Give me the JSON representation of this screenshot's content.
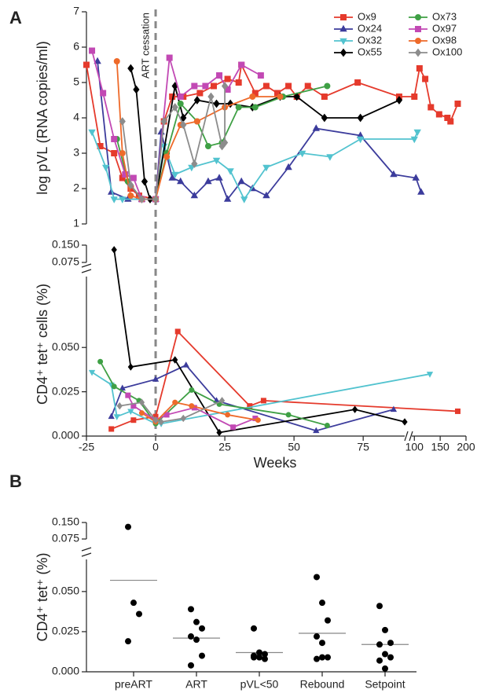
{
  "chart_data": [
    {
      "type": "line",
      "panel": "A",
      "ylabel": "log pVL (RNA copies/ml)",
      "annotation": "ART cessation",
      "vline": 0,
      "ylim": [
        1,
        7
      ],
      "yticks": [
        1,
        2,
        3,
        4,
        5,
        6,
        7
      ],
      "series": [
        {
          "name": "Ox9",
          "color": "#e53a2c",
          "marker": "square",
          "x": [
            -25,
            -20,
            -15,
            -12,
            -9,
            -6,
            0,
            3,
            6,
            10,
            16,
            21,
            26,
            30,
            31,
            36,
            40,
            44,
            48,
            51,
            55,
            61,
            73,
            88,
            100,
            110,
            121,
            132,
            148,
            164,
            170,
            184
          ],
          "values": [
            5.5,
            3.2,
            3.0,
            2.3,
            2.0,
            1.8,
            1.7,
            3.9,
            4.6,
            4.6,
            4.7,
            4.9,
            5.1,
            5.0,
            5.5,
            4.7,
            4.9,
            4.7,
            4.9,
            4.6,
            4.9,
            4.6,
            5.0,
            4.6,
            4.6,
            5.4,
            5.1,
            4.3,
            4.1,
            4.0,
            3.9,
            4.4
          ]
        },
        {
          "name": "Ox24",
          "color": "#3c3c9c",
          "marker": "triangle",
          "x": [
            -21,
            -16,
            -10,
            -5,
            0,
            2,
            6,
            9,
            14,
            19,
            23,
            26,
            31,
            35,
            40,
            48,
            58,
            74,
            86,
            103,
            113
          ],
          "values": [
            5.6,
            1.9,
            1.7,
            1.7,
            1.7,
            3.6,
            2.3,
            2.2,
            1.8,
            2.2,
            2.3,
            1.7,
            2.2,
            2.0,
            1.8,
            2.6,
            3.7,
            3.5,
            2.4,
            2.3,
            1.9
          ]
        },
        {
          "name": "Ox32",
          "color": "#52c3cf",
          "marker": "triangle-down",
          "x": [
            -23,
            -18,
            -15,
            -12,
            -5,
            0,
            3,
            7,
            13,
            22,
            27,
            32,
            40,
            53,
            63,
            74,
            100,
            106
          ],
          "values": [
            3.6,
            2.6,
            1.7,
            1.7,
            1.7,
            1.7,
            3.2,
            2.4,
            2.6,
            2.8,
            2.5,
            1.7,
            2.6,
            3.0,
            2.9,
            3.4,
            3.4,
            3.6
          ]
        },
        {
          "name": "Ox55",
          "color": "#000000",
          "marker": "diamond",
          "x": [
            -9,
            -7,
            -4,
            -2,
            0,
            7,
            10,
            15,
            22,
            27,
            35,
            45,
            51,
            61,
            74,
            88
          ],
          "values": [
            5.4,
            4.8,
            2.2,
            1.7,
            1.7,
            4.9,
            4.0,
            4.5,
            4.4,
            4.4,
            4.3,
            4.6,
            4.6,
            4.0,
            4.0,
            4.5
          ]
        },
        {
          "name": "Ox73",
          "color": "#3fa045",
          "marker": "circle",
          "x": [
            -14,
            -10,
            -5,
            0,
            4,
            9,
            15,
            19,
            24,
            30,
            36,
            46,
            62
          ],
          "values": [
            3.4,
            2.2,
            1.7,
            1.7,
            3.0,
            4.4,
            3.9,
            3.2,
            3.3,
            4.3,
            4.3,
            4.6,
            4.9
          ]
        },
        {
          "name": "Ox97",
          "color": "#c249b4",
          "marker": "square",
          "x": [
            -23,
            -19,
            -15,
            -11,
            -8,
            -5,
            0,
            5,
            9,
            14,
            18,
            23,
            26,
            31,
            38
          ],
          "values": [
            5.9,
            4.7,
            3.4,
            2.4,
            2.3,
            1.7,
            1.7,
            5.7,
            4.6,
            4.9,
            4.9,
            5.2,
            4.8,
            5.5,
            5.2
          ]
        },
        {
          "name": "Ox98",
          "color": "#ee6a2a",
          "marker": "circle",
          "x": [
            -14,
            -12,
            -9,
            -5,
            0,
            4,
            9,
            15,
            25,
            35,
            45
          ],
          "values": [
            5.6,
            3.0,
            1.8,
            1.7,
            1.7,
            2.9,
            3.8,
            3.9,
            4.3,
            4.6,
            4.6
          ]
        },
        {
          "name": "Ox100",
          "color": "#8c8c8c",
          "marker": "diamond",
          "x": [
            -12,
            -9,
            -5,
            0,
            3,
            7,
            10,
            14,
            20,
            24,
            25,
            25
          ],
          "values": [
            3.9,
            2.1,
            1.7,
            1.7,
            3.9,
            4.3,
            3.8,
            2.7,
            4.6,
            3.2,
            3.3,
            4.9
          ]
        }
      ]
    },
    {
      "type": "line",
      "ylabel": "CD4⁺ tet⁺ cells (%)",
      "xlabel": "Weeks",
      "xlim": [
        [
          -25,
          90
        ],
        [
          95,
          200
        ]
      ],
      "xticks": [
        -25,
        0,
        25,
        50,
        75,
        100,
        150,
        200
      ],
      "ylim": [
        [
          0,
          0.09
        ],
        [
          0.075,
          0.15
        ]
      ],
      "yticks": [
        [
          {
            "value": 0,
            "label": "0.000"
          },
          {
            "value": 0.025,
            "label": "0.025"
          },
          {
            "value": 0.05,
            "label": "0.050"
          }
        ],
        [
          {
            "value": 0.075,
            "label": "0.075"
          },
          {
            "value": 0.15,
            "label": "0.150"
          }
        ]
      ],
      "series": [
        {
          "color": "#e53a2c",
          "marker": "square",
          "x": [
            -16,
            -8,
            0,
            8,
            34,
            39,
            184
          ],
          "values": [
            0.004,
            0.009,
            0.011,
            0.059,
            0.017,
            0.02,
            0.014
          ]
        },
        {
          "color": "#3c3c9c",
          "marker": "triangle",
          "x": [
            -16,
            -12,
            0,
            11,
            22,
            58,
            86
          ],
          "values": [
            0.011,
            0.027,
            0.032,
            0.04,
            0.02,
            0.003,
            0.015
          ]
        },
        {
          "color": "#52c3cf",
          "marker": "triangle-down",
          "x": [
            -23,
            -16,
            -14,
            -9,
            0,
            2,
            130
          ],
          "values": [
            0.036,
            0.029,
            0.011,
            0.014,
            0.007,
            0.007,
            0.035
          ]
        },
        {
          "color": "#000000",
          "marker": "diamond",
          "x": [
            -15,
            -9,
            7,
            23,
            72,
            90
          ],
          "values": [
            0.13,
            0.039,
            0.043,
            0.002,
            0.015,
            0.008
          ]
        },
        {
          "color": "#3fa045",
          "marker": "circle",
          "x": [
            -20,
            -15,
            -6,
            0,
            13,
            23,
            48,
            62
          ],
          "values": [
            0.042,
            0.028,
            0.02,
            0.007,
            0.026,
            0.018,
            0.012,
            0.006
          ]
        },
        {
          "color": "#c249b4",
          "marker": "square",
          "x": [
            -10,
            -8,
            0,
            4,
            14,
            28,
            36
          ],
          "values": [
            0.023,
            0.017,
            0.009,
            0.012,
            0.016,
            0.005,
            0.01
          ]
        },
        {
          "color": "#ee6a2a",
          "marker": "circle",
          "x": [
            -5,
            0,
            7,
            13,
            26,
            37
          ],
          "values": [
            0.013,
            0.008,
            0.019,
            0.017,
            0.012,
            0.009
          ]
        },
        {
          "color": "#8c8c8c",
          "marker": "diamond",
          "x": [
            -13,
            -5,
            0,
            2,
            10,
            24
          ],
          "values": [
            0.017,
            0.019,
            0.009,
            0.008,
            0.01,
            0.02
          ]
        }
      ]
    },
    {
      "type": "dot",
      "panel": "B",
      "ylabel": "CD4⁺ tet⁺ (%)",
      "color": "#000000",
      "mean_color": "#888888",
      "categories": [
        "preART",
        "ART",
        "pVL<50",
        "Rebound",
        "Setpoint"
      ],
      "ylim": [
        [
          0,
          0.07
        ],
        [
          0.075,
          0.15
        ]
      ],
      "yticks": [
        [
          {
            "value": 0,
            "label": "0.000"
          },
          {
            "value": 0.025,
            "label": "0.025"
          },
          {
            "value": 0.05,
            "label": "0.050"
          }
        ],
        [
          {
            "value": 0.075,
            "label": "0.075"
          },
          {
            "value": 0.15,
            "label": "0.150"
          }
        ]
      ],
      "values": [
        [
          0.13,
          0.043,
          0.036,
          0.019
        ],
        [
          0.039,
          0.031,
          0.027,
          0.022,
          0.02,
          0.01,
          0.004
        ],
        [
          0.027,
          0.012,
          0.011,
          0.01,
          0.009,
          0.008,
          0.009
        ],
        [
          0.059,
          0.043,
          0.032,
          0.022,
          0.018,
          0.009,
          0.008,
          0.009
        ],
        [
          0.041,
          0.026,
          0.018,
          0.017,
          0.011,
          0.009,
          0.007,
          0.002
        ]
      ],
      "means": [
        0.057,
        0.021,
        0.012,
        0.024,
        0.017
      ]
    }
  ]
}
